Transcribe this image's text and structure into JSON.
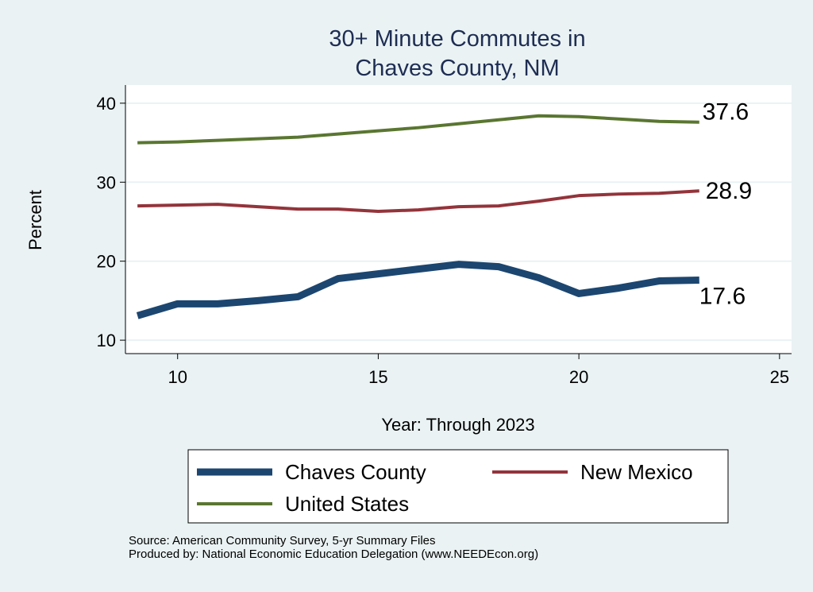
{
  "chart_data": {
    "type": "line",
    "title": [
      "30+ Minute Commutes in",
      "Chaves County, NM"
    ],
    "xlabel": "Year: Through 2023",
    "ylabel": "Percent",
    "xlim": [
      8.7,
      25.3
    ],
    "ylim": [
      8.3,
      42.3
    ],
    "xticks": [
      10,
      15,
      20,
      25
    ],
    "yticks": [
      10,
      20,
      30,
      40
    ],
    "grid": true,
    "x": [
      9,
      10,
      11,
      12,
      13,
      14,
      15,
      16,
      17,
      18,
      19,
      20,
      21,
      22,
      23
    ],
    "series": [
      {
        "name": "Chaves County",
        "color": "#1c4670",
        "width": 9,
        "values": [
          13.1,
          14.6,
          14.6,
          15.0,
          15.5,
          17.8,
          18.4,
          19.0,
          19.6,
          19.3,
          17.9,
          15.9,
          16.6,
          17.5,
          17.6
        ],
        "end_label": "17.6"
      },
      {
        "name": "New Mexico",
        "color": "#93343b",
        "width": 4,
        "values": [
          27.0,
          27.1,
          27.2,
          26.9,
          26.6,
          26.6,
          26.3,
          26.5,
          26.9,
          27.0,
          27.6,
          28.3,
          28.5,
          28.6,
          28.9
        ],
        "end_label": "28.9"
      },
      {
        "name": "United States",
        "color": "#5a7631",
        "width": 4,
        "values": [
          35.0,
          35.1,
          35.3,
          35.5,
          35.7,
          36.1,
          36.5,
          36.9,
          37.4,
          37.9,
          38.4,
          38.3,
          38.0,
          37.7,
          37.6
        ],
        "end_label": "37.6"
      }
    ],
    "legend_position": "bottom"
  },
  "source": "Source: American Community Survey, 5-yr Summary Files",
  "produced": "Produced by: National Economic Education Delegation (www.NEEDEcon.org)"
}
